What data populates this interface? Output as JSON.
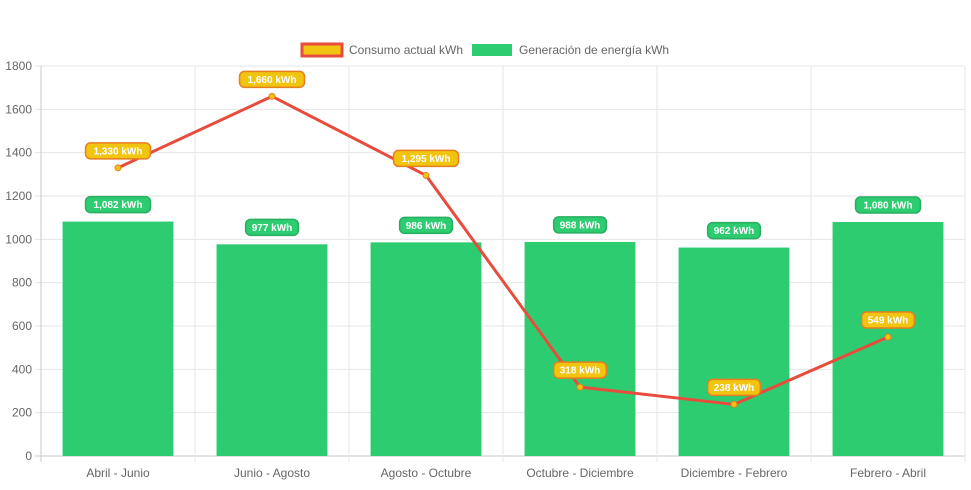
{
  "chart_data": {
    "type": "bar",
    "categories": [
      "Abril - Junio",
      "Junio - Agosto",
      "Agosto - Octubre",
      "Octubre - Diciembre",
      "Diciembre - Febrero",
      "Febrero - Abril"
    ],
    "series": [
      {
        "name": "Consumo actual kWh",
        "type": "line",
        "values": [
          1330,
          1660,
          1295,
          318,
          238,
          549
        ],
        "data_labels": [
          "1,330 kWh",
          "1,660 kWh",
          "1,295 kWh",
          "318 kWh",
          "238 kWh",
          "549 kWh"
        ],
        "color": "#e74c3c",
        "point_color": "#f1c40f"
      },
      {
        "name": "Generación de energía kWh",
        "type": "bar",
        "values": [
          1082,
          977,
          986,
          988,
          962,
          1080
        ],
        "data_labels": [
          "1,082 kWh",
          "977 kWh",
          "986 kWh",
          "988 kWh",
          "962 kWh",
          "1,080 kWh"
        ],
        "color": "#2ecc71"
      }
    ],
    "ylim": [
      0,
      1800
    ],
    "yticks": [
      "0",
      "200",
      "400",
      "600",
      "800",
      "1000",
      "1200",
      "1400",
      "1600",
      "1800"
    ],
    "grid": true,
    "legend_position": "top"
  }
}
